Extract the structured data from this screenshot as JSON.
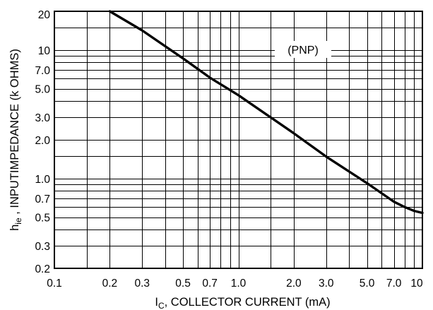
{
  "chart_data": {
    "type": "line",
    "x_scale": "log",
    "y_scale": "log",
    "xlim": [
      0.1,
      10
    ],
    "ylim": [
      0.2,
      20
    ],
    "grid": true,
    "xlabel": {
      "main": "I",
      "sub": "C",
      "rest": ", COLLECTOR CURRENT (mA)"
    },
    "ylabel": {
      "main": "h",
      "sub": "ie",
      "rest": " , INPUTIMPEDANCE (k OHMS)"
    },
    "annotation": "(PNP)",
    "x_ticks": [
      {
        "value": 0.1,
        "label": "0.1"
      },
      {
        "value": 0.2,
        "label": "0.2"
      },
      {
        "value": 0.3,
        "label": "0.3"
      },
      {
        "value": 0.5,
        "label": "0.5"
      },
      {
        "value": 0.7,
        "label": "0.7"
      },
      {
        "value": 1.0,
        "label": "1.0"
      },
      {
        "value": 2.0,
        "label": "2.0"
      },
      {
        "value": 3.0,
        "label": "3.0"
      },
      {
        "value": 5.0,
        "label": "5.0"
      },
      {
        "value": 7.0,
        "label": "7.0"
      },
      {
        "value": 10,
        "label": "10"
      }
    ],
    "y_ticks": [
      {
        "value": 0.2,
        "label": "0.2"
      },
      {
        "value": 0.3,
        "label": "0.3"
      },
      {
        "value": 0.5,
        "label": "0.5"
      },
      {
        "value": 0.7,
        "label": "0.7"
      },
      {
        "value": 1.0,
        "label": "1.0"
      },
      {
        "value": 2.0,
        "label": "2.0"
      },
      {
        "value": 3.0,
        "label": "3.0"
      },
      {
        "value": 5.0,
        "label": "5.0"
      },
      {
        "value": 7.0,
        "label": "7.0"
      },
      {
        "value": 10,
        "label": "10"
      },
      {
        "value": 20,
        "label": "20"
      }
    ],
    "x_grid": [
      0.1,
      0.15,
      0.2,
      0.3,
      0.4,
      0.5,
      0.6,
      0.7,
      0.8,
      0.9,
      1.0,
      1.5,
      2.0,
      3.0,
      4.0,
      5.0,
      6.0,
      7.0,
      8.0,
      9.0,
      10
    ],
    "y_grid": [
      0.2,
      0.3,
      0.4,
      0.5,
      0.6,
      0.7,
      0.8,
      0.9,
      1.0,
      1.5,
      2.0,
      3.0,
      4.0,
      5.0,
      6.0,
      7.0,
      8.0,
      9.0,
      10,
      15,
      20
    ],
    "series": [
      {
        "x": [
          0.2,
          0.3,
          0.5,
          0.7,
          1.0,
          2.0,
          3.0,
          5.0,
          7.0,
          8.0,
          9.0,
          10
        ],
        "y": [
          20,
          14.2,
          8.6,
          6.1,
          4.45,
          2.25,
          1.48,
          0.92,
          0.66,
          0.6,
          0.56,
          0.54
        ]
      }
    ]
  }
}
